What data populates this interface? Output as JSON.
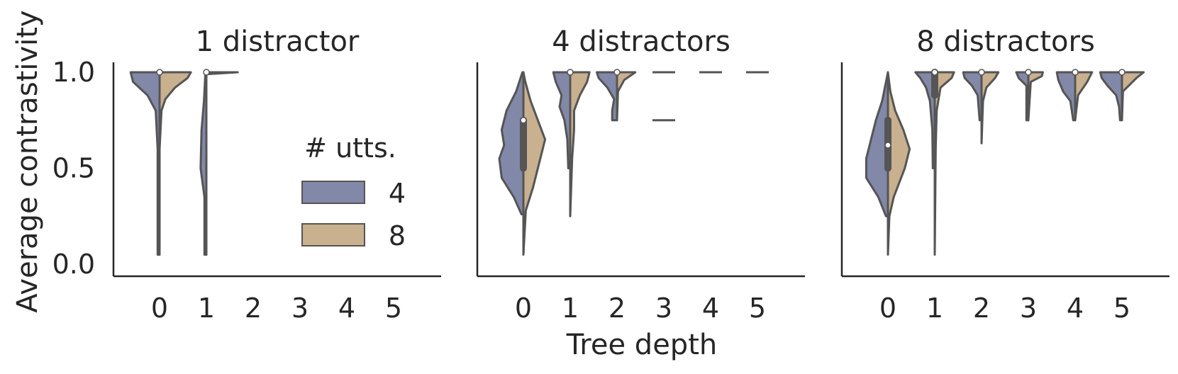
{
  "chart_data": {
    "type": "violin",
    "xlabel": "Tree depth",
    "ylabel": "Average contrastivity",
    "yticks": [
      "0.0",
      "0.5",
      "1.0"
    ],
    "ylim": [
      0,
      1.05
    ],
    "categories": [
      "0",
      "1",
      "2",
      "3",
      "4",
      "5"
    ],
    "legend": {
      "title": "# utts.",
      "placement": "center-right of first panel",
      "entries": [
        {
          "label": "4",
          "color": "#8288a8"
        },
        {
          "label": "8",
          "color": "#c9b08f"
        }
      ]
    },
    "series_colors": {
      "4": "#8288a8",
      "8": "#c9b08f"
    },
    "panels": [
      {
        "title": "1 distractor",
        "violins": [
          {
            "x": 0,
            "median": 1.0,
            "q1": 1.0,
            "q3": 1.0,
            "min": 0.05,
            "max": 1.0,
            "left": [
              [
                0.05,
                0.04
              ],
              [
                0.3,
                0.04
              ],
              [
                0.6,
                0.04
              ],
              [
                0.8,
                0.08
              ],
              [
                0.88,
                0.25
              ],
              [
                0.95,
                0.55
              ],
              [
                1.0,
                0.6
              ]
            ],
            "right": [
              [
                0.05,
                0.0
              ],
              [
                0.6,
                0.0
              ],
              [
                0.8,
                0.04
              ],
              [
                0.86,
                0.12
              ],
              [
                0.92,
                0.32
              ],
              [
                0.97,
                0.58
              ],
              [
                1.0,
                0.65
              ]
            ]
          },
          {
            "x": 1,
            "median": 1.0,
            "q1": 1.0,
            "q3": 1.0,
            "min": 0.05,
            "max": 1.0,
            "left": [
              [
                0.05,
                0.04
              ],
              [
                0.2,
                0.04
              ],
              [
                0.35,
                0.04
              ],
              [
                0.5,
                0.12
              ],
              [
                0.7,
                0.1
              ],
              [
                0.85,
                0.05
              ],
              [
                0.95,
                0.03
              ],
              [
                1.0,
                0.02
              ]
            ],
            "right": [
              [
                0.05,
                0.0
              ],
              [
                0.99,
                0.0
              ],
              [
                1.0,
                0.65
              ]
            ]
          }
        ]
      },
      {
        "title": "4 distractors",
        "violins": [
          {
            "x": 0,
            "median": 0.75,
            "q1": 0.5,
            "q3": 0.75,
            "min": 0.05,
            "max": 1.0,
            "left": [
              [
                0.26,
                0.04
              ],
              [
                0.35,
                0.2
              ],
              [
                0.45,
                0.45
              ],
              [
                0.55,
                0.5
              ],
              [
                0.62,
                0.4
              ],
              [
                0.7,
                0.45
              ],
              [
                0.8,
                0.35
              ],
              [
                0.9,
                0.15
              ],
              [
                1.0,
                0.02
              ]
            ],
            "right": [
              [
                0.05,
                0.0
              ],
              [
                0.28,
                0.05
              ],
              [
                0.4,
                0.2
              ],
              [
                0.55,
                0.35
              ],
              [
                0.65,
                0.45
              ],
              [
                0.75,
                0.3
              ],
              [
                0.85,
                0.15
              ],
              [
                0.95,
                0.04
              ],
              [
                1.0,
                0.0
              ]
            ]
          },
          {
            "x": 1,
            "median": 1.0,
            "q1": 1.0,
            "q3": 1.0,
            "min": 0.25,
            "max": 1.0,
            "left": [
              [
                0.5,
                0.04
              ],
              [
                0.65,
                0.06
              ],
              [
                0.75,
                0.12
              ],
              [
                0.82,
                0.22
              ],
              [
                0.88,
                0.18
              ],
              [
                0.95,
                0.3
              ],
              [
                1.0,
                0.35
              ]
            ],
            "right": [
              [
                0.25,
                0.0
              ],
              [
                0.55,
                0.04
              ],
              [
                0.7,
                0.08
              ],
              [
                0.8,
                0.08
              ],
              [
                0.88,
                0.2
              ],
              [
                0.95,
                0.35
              ],
              [
                1.0,
                0.4
              ]
            ]
          },
          {
            "x": 2,
            "median": 1.0,
            "q1": 1.0,
            "q3": 1.0,
            "min": 0.75,
            "max": 1.0,
            "left": [
              [
                0.75,
                0.1
              ],
              [
                0.8,
                0.1
              ],
              [
                0.86,
                0.06
              ],
              [
                0.92,
                0.2
              ],
              [
                0.97,
                0.38
              ],
              [
                1.0,
                0.42
              ]
            ],
            "right": [
              [
                0.75,
                0.0
              ],
              [
                0.9,
                0.02
              ],
              [
                0.96,
                0.15
              ],
              [
                1.0,
                0.38
              ]
            ]
          },
          {
            "x": 3,
            "marks": [
              1.0,
              0.75
            ]
          },
          {
            "x": 4,
            "marks": [
              1.0
            ]
          },
          {
            "x": 5,
            "marks": [
              1.0
            ]
          }
        ]
      },
      {
        "title": "8 distractors",
        "violins": [
          {
            "x": 0,
            "median": 0.62,
            "q1": 0.5,
            "q3": 0.75,
            "min": 0.05,
            "max": 1.0,
            "left": [
              [
                0.25,
                0.04
              ],
              [
                0.35,
                0.2
              ],
              [
                0.45,
                0.45
              ],
              [
                0.55,
                0.45
              ],
              [
                0.65,
                0.35
              ],
              [
                0.75,
                0.25
              ],
              [
                0.85,
                0.12
              ],
              [
                0.95,
                0.04
              ],
              [
                1.0,
                0.0
              ]
            ],
            "right": [
              [
                0.05,
                0.0
              ],
              [
                0.25,
                0.03
              ],
              [
                0.35,
                0.12
              ],
              [
                0.5,
                0.35
              ],
              [
                0.6,
                0.45
              ],
              [
                0.7,
                0.32
              ],
              [
                0.8,
                0.15
              ],
              [
                0.9,
                0.05
              ],
              [
                1.0,
                0.0
              ]
            ]
          },
          {
            "x": 1,
            "median": 1.0,
            "q1": 0.88,
            "q3": 1.0,
            "min": 0.05,
            "max": 1.0,
            "left": [
              [
                0.5,
                0.04
              ],
              [
                0.7,
                0.05
              ],
              [
                0.85,
                0.1
              ],
              [
                0.92,
                0.18
              ],
              [
                0.97,
                0.3
              ],
              [
                1.0,
                0.4
              ]
            ],
            "right": [
              [
                0.05,
                0.0
              ],
              [
                0.6,
                0.02
              ],
              [
                0.8,
                0.04
              ],
              [
                0.92,
                0.12
              ],
              [
                0.97,
                0.35
              ],
              [
                1.0,
                0.4
              ]
            ]
          },
          {
            "x": 2,
            "median": 1.0,
            "q1": 1.0,
            "q3": 1.0,
            "min": 0.63,
            "max": 1.0,
            "left": [
              [
                0.75,
                0.04
              ],
              [
                0.88,
                0.08
              ],
              [
                0.93,
                0.2
              ],
              [
                0.97,
                0.35
              ],
              [
                1.0,
                0.38
              ]
            ],
            "right": [
              [
                0.63,
                0.0
              ],
              [
                0.85,
                0.03
              ],
              [
                0.92,
                0.1
              ],
              [
                0.97,
                0.28
              ],
              [
                1.0,
                0.35
              ]
            ]
          },
          {
            "x": 3,
            "median": 1.0,
            "q1": 1.0,
            "q3": 1.0,
            "min": 0.75,
            "max": 1.0,
            "left": [
              [
                0.75,
                0.04
              ],
              [
                0.93,
                0.04
              ],
              [
                0.97,
                0.2
              ],
              [
                1.0,
                0.25
              ]
            ],
            "right": [
              [
                0.75,
                0.0
              ],
              [
                0.95,
                0.05
              ],
              [
                0.98,
                0.28
              ],
              [
                1.0,
                0.3
              ]
            ]
          },
          {
            "x": 4,
            "median": 1.0,
            "q1": 1.0,
            "q3": 1.0,
            "min": 0.75,
            "max": 1.0,
            "left": [
              [
                0.75,
                0.04
              ],
              [
                0.85,
                0.1
              ],
              [
                0.9,
                0.25
              ],
              [
                0.96,
                0.35
              ],
              [
                1.0,
                0.38
              ]
            ],
            "right": [
              [
                0.75,
                0.0
              ],
              [
                0.88,
                0.06
              ],
              [
                0.95,
                0.25
              ],
              [
                1.0,
                0.35
              ]
            ]
          },
          {
            "x": 5,
            "median": 1.0,
            "q1": 1.0,
            "q3": 1.0,
            "min": 0.75,
            "max": 1.0,
            "left": [
              [
                0.75,
                0.04
              ],
              [
                0.82,
                0.06
              ],
              [
                0.88,
                0.12
              ],
              [
                0.93,
                0.3
              ],
              [
                0.97,
                0.42
              ],
              [
                1.0,
                0.45
              ]
            ],
            "right": [
              [
                0.75,
                0.0
              ],
              [
                0.9,
                0.02
              ],
              [
                0.97,
                0.3
              ],
              [
                1.0,
                0.45
              ]
            ]
          }
        ]
      }
    ]
  }
}
